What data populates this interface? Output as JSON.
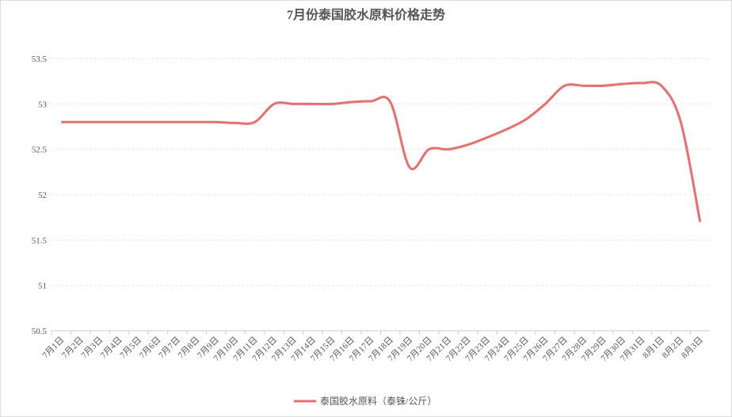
{
  "chart_data": {
    "type": "line",
    "title": "7月份泰国胶水原料价格走势",
    "categories": [
      "7月1日",
      "7月2日",
      "7月3日",
      "7月4日",
      "7月5日",
      "7月6日",
      "7月7日",
      "7月8日",
      "7月9日",
      "7月10日",
      "7月11日",
      "7月12日",
      "7月13日",
      "7月14日",
      "7月15日",
      "7月16日",
      "7月17日",
      "7月18日",
      "7月19日",
      "7月20日",
      "7月21日",
      "7月22日",
      "7月23日",
      "7月24日",
      "7月25日",
      "7月26日",
      "7月27日",
      "7月28日",
      "7月29日",
      "7月30日",
      "7月31日",
      "8月1日",
      "8月2日",
      "8月3日"
    ],
    "series": [
      {
        "name": "泰国胶水原料（泰铢/公斤）",
        "color": "#f06b6b",
        "values": [
          52.8,
          52.8,
          52.8,
          52.8,
          52.8,
          52.8,
          52.8,
          52.8,
          52.8,
          52.79,
          52.8,
          53.0,
          53.0,
          53.0,
          53.0,
          53.02,
          53.03,
          53.02,
          52.3,
          52.5,
          52.5,
          52.55,
          52.63,
          52.72,
          52.83,
          53.0,
          53.2,
          53.2,
          53.2,
          53.22,
          53.23,
          53.2,
          52.8,
          51.7
        ]
      }
    ],
    "ylim": [
      50.5,
      53.5
    ],
    "yticks": [
      50.5,
      51,
      51.5,
      52,
      52.5,
      53,
      53.5
    ],
    "grid": true,
    "legend": "bottom"
  }
}
